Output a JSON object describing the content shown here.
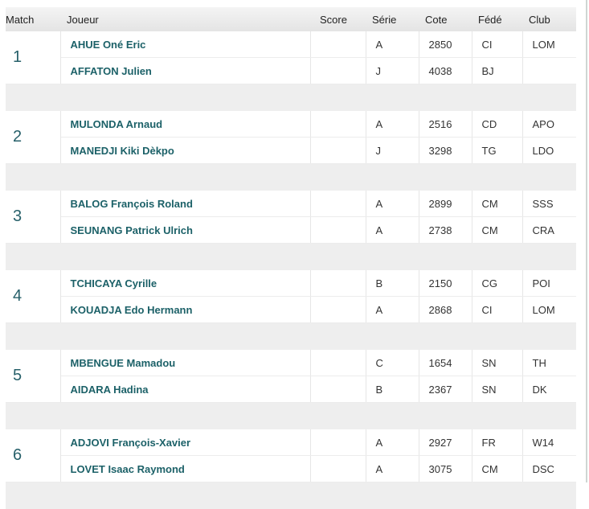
{
  "headers": {
    "match": "Match",
    "joueur": "Joueur",
    "score": "Score",
    "serie": "Série",
    "cote": "Cote",
    "fede": "Fédé",
    "club": "Club"
  },
  "matches": [
    {
      "number": "1",
      "players": [
        {
          "name": "AHUE Oné Eric",
          "score": "",
          "serie": "A",
          "cote": "2850",
          "fede": "CI",
          "club": "LOM"
        },
        {
          "name": "AFFATON Julien",
          "score": "",
          "serie": "J",
          "cote": "4038",
          "fede": "BJ",
          "club": ""
        }
      ]
    },
    {
      "number": "2",
      "players": [
        {
          "name": "MULONDA Arnaud",
          "score": "",
          "serie": "A",
          "cote": "2516",
          "fede": "CD",
          "club": "APO"
        },
        {
          "name": "MANEDJI Kiki Dèkpo",
          "score": "",
          "serie": "J",
          "cote": "3298",
          "fede": "TG",
          "club": "LDO"
        }
      ]
    },
    {
      "number": "3",
      "players": [
        {
          "name": "BALOG François Roland",
          "score": "",
          "serie": "A",
          "cote": "2899",
          "fede": "CM",
          "club": "SSS"
        },
        {
          "name": "SEUNANG Patrick Ulrich",
          "score": "",
          "serie": "A",
          "cote": "2738",
          "fede": "CM",
          "club": "CRA"
        }
      ]
    },
    {
      "number": "4",
      "players": [
        {
          "name": "TCHICAYA Cyrille",
          "score": "",
          "serie": "B",
          "cote": "2150",
          "fede": "CG",
          "club": "POI"
        },
        {
          "name": "KOUADJA Edo Hermann",
          "score": "",
          "serie": "A",
          "cote": "2868",
          "fede": "CI",
          "club": "LOM"
        }
      ]
    },
    {
      "number": "5",
      "players": [
        {
          "name": "MBENGUE Mamadou",
          "score": "",
          "serie": "C",
          "cote": "1654",
          "fede": "SN",
          "club": "TH"
        },
        {
          "name": "AIDARA Hadina",
          "score": "",
          "serie": "B",
          "cote": "2367",
          "fede": "SN",
          "club": "DK"
        }
      ]
    },
    {
      "number": "6",
      "players": [
        {
          "name": "ADJOVI François-Xavier",
          "score": "",
          "serie": "A",
          "cote": "2927",
          "fede": "FR",
          "club": "W14"
        },
        {
          "name": "LOVET Isaac Raymond",
          "score": "",
          "serie": "A",
          "cote": "3075",
          "fede": "CM",
          "club": "DSC"
        }
      ]
    }
  ]
}
